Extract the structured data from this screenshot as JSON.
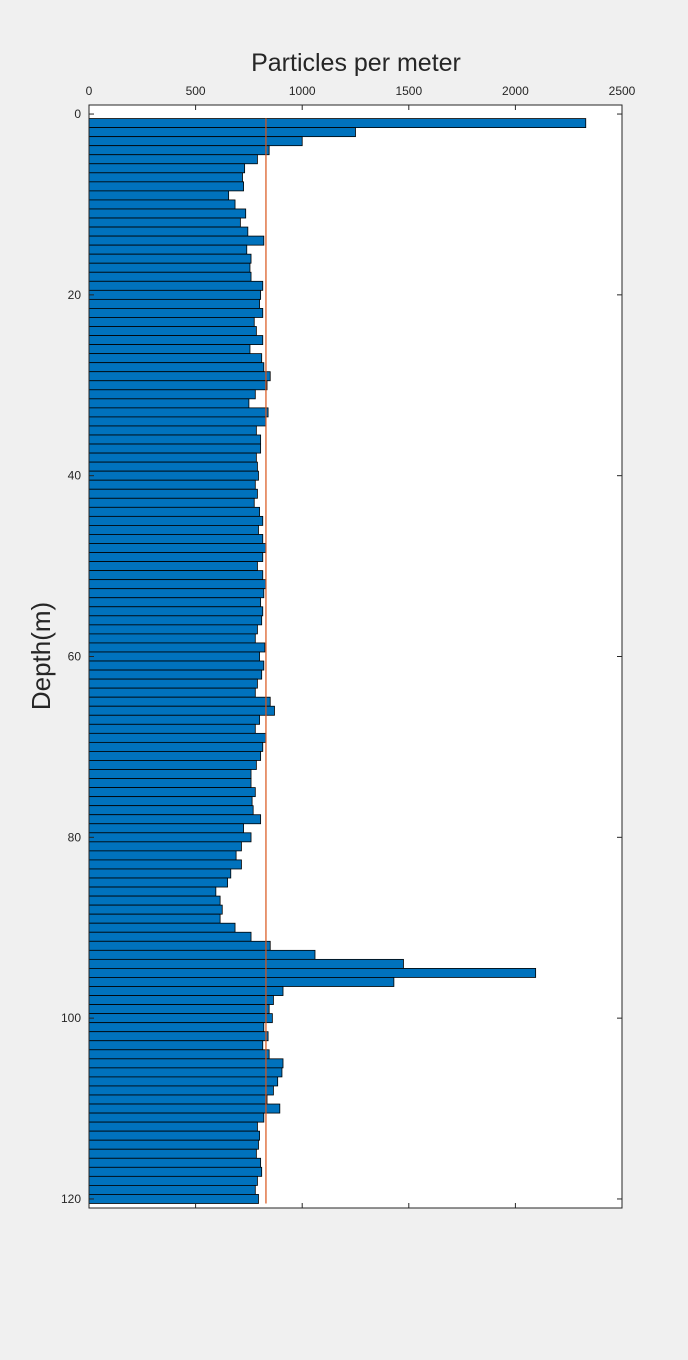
{
  "chart_data": {
    "type": "bar",
    "orientation": "horizontal",
    "title": "Particles per meter",
    "xlabel": "",
    "ylabel": "Depth(m)",
    "xlim": [
      0,
      2500
    ],
    "ylim": [
      0,
      120
    ],
    "y_reversed": true,
    "x_axis_location": "top",
    "xticks": [
      0,
      500,
      1000,
      1500,
      2000,
      2500
    ],
    "yticks": [
      0,
      20,
      40,
      60,
      80,
      100,
      120
    ],
    "bar_color": "#0072bd",
    "bar_edge_color": "#000000",
    "reference_line": {
      "value": 830,
      "color": "#d95319",
      "orientation": "vertical"
    },
    "depths": [
      1,
      2,
      3,
      4,
      5,
      6,
      7,
      8,
      9,
      10,
      11,
      12,
      13,
      14,
      15,
      16,
      17,
      18,
      19,
      20,
      21,
      22,
      23,
      24,
      25,
      26,
      27,
      28,
      29,
      30,
      31,
      32,
      33,
      34,
      35,
      36,
      37,
      38,
      39,
      40,
      41,
      42,
      43,
      44,
      45,
      46,
      47,
      48,
      49,
      50,
      51,
      52,
      53,
      54,
      55,
      56,
      57,
      58,
      59,
      60,
      61,
      62,
      63,
      64,
      65,
      66,
      67,
      68,
      69,
      70,
      71,
      72,
      73,
      74,
      75,
      76,
      77,
      78,
      79,
      80,
      81,
      82,
      83,
      84,
      85,
      86,
      87,
      88,
      89,
      90,
      91,
      92,
      93,
      94,
      95,
      96,
      97,
      98,
      99,
      100,
      101,
      102,
      103,
      104,
      105,
      106,
      107,
      108,
      109,
      110,
      111,
      112,
      113,
      114,
      115,
      116,
      117,
      118,
      119,
      120
    ],
    "values": [
      2330,
      1250,
      1000,
      845,
      790,
      730,
      720,
      725,
      655,
      685,
      735,
      710,
      745,
      820,
      740,
      760,
      755,
      760,
      815,
      805,
      800,
      815,
      775,
      785,
      815,
      755,
      810,
      820,
      850,
      835,
      780,
      750,
      840,
      830,
      785,
      805,
      805,
      785,
      790,
      795,
      780,
      790,
      775,
      800,
      815,
      795,
      815,
      830,
      815,
      790,
      815,
      830,
      820,
      805,
      815,
      810,
      790,
      780,
      825,
      800,
      820,
      810,
      790,
      780,
      850,
      870,
      800,
      780,
      830,
      815,
      805,
      785,
      760,
      760,
      780,
      765,
      770,
      805,
      725,
      760,
      715,
      690,
      715,
      665,
      650,
      595,
      615,
      625,
      615,
      685,
      760,
      850,
      1060,
      1475,
      2095,
      1430,
      910,
      865,
      845,
      860,
      820,
      840,
      815,
      845,
      910,
      905,
      885,
      865,
      835,
      895,
      820,
      790,
      800,
      795,
      785,
      805,
      810,
      790,
      780,
      795
    ]
  }
}
